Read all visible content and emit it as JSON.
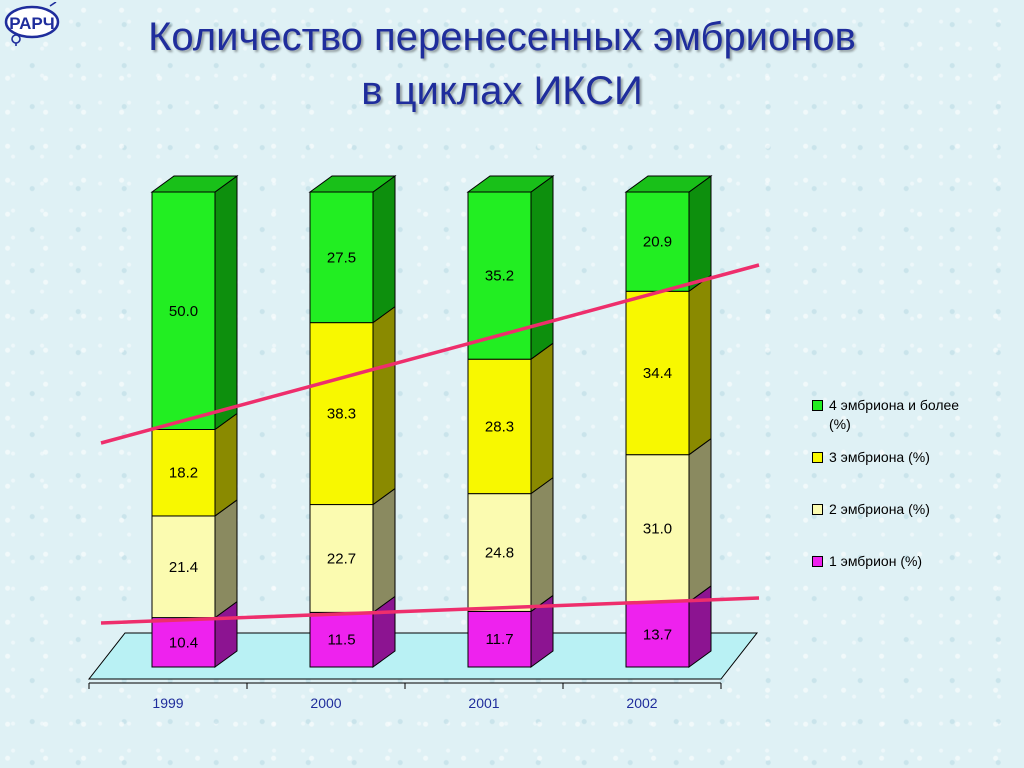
{
  "header": {
    "title_line1": "Количество перенесенных эмбрионов",
    "title_line2": "в циклах ИКСИ"
  },
  "logo": {
    "text": "РАРЧ",
    "icon": "rarch-logo-icon"
  },
  "chart_data": {
    "type": "bar",
    "stacked": true,
    "style": "3d-stacked-column",
    "categories": [
      "1999",
      "2000",
      "2001",
      "2002"
    ],
    "series": [
      {
        "name": "1 эмбрион (%)",
        "values": [
          10.4,
          11.5,
          11.7,
          13.7
        ],
        "labels": [
          "10.4",
          "11.5",
          "11.7",
          "13.7"
        ],
        "color": "#ee22ee",
        "side": "#8c1491",
        "top": "#f56cf5"
      },
      {
        "name": "2 эмбриона (%)",
        "values": [
          21.4,
          22.7,
          24.8,
          31.0
        ],
        "labels": [
          "21.4",
          "22.7",
          "24.8",
          "31.0"
        ],
        "color": "#fbfbb0",
        "side": "#8a8a60",
        "top": "#fdfdd0"
      },
      {
        "name": "3 эмбриона (%)",
        "values": [
          18.2,
          38.3,
          28.3,
          34.4
        ],
        "labels": [
          "18.2",
          "38.3",
          "28.3",
          "34.4"
        ],
        "color": "#f8f800",
        "side": "#8a8a00",
        "top": "#fbfb66"
      },
      {
        "name": "4 эмбриона и более (%)",
        "values": [
          50.0,
          27.5,
          35.2,
          20.9
        ],
        "labels": [
          "50.0",
          "27.5",
          "35.2",
          "20.9"
        ],
        "color": "#22ee22",
        "side": "#0d8f0d",
        "top": "#19c019"
      }
    ],
    "legend_order": [
      3,
      2,
      1,
      0
    ],
    "legend_placement": "right",
    "ylim": [
      0,
      100
    ],
    "grid": false,
    "trend_line_color": "#ee2e6c",
    "title": "",
    "xlabel": "",
    "ylabel": ""
  }
}
